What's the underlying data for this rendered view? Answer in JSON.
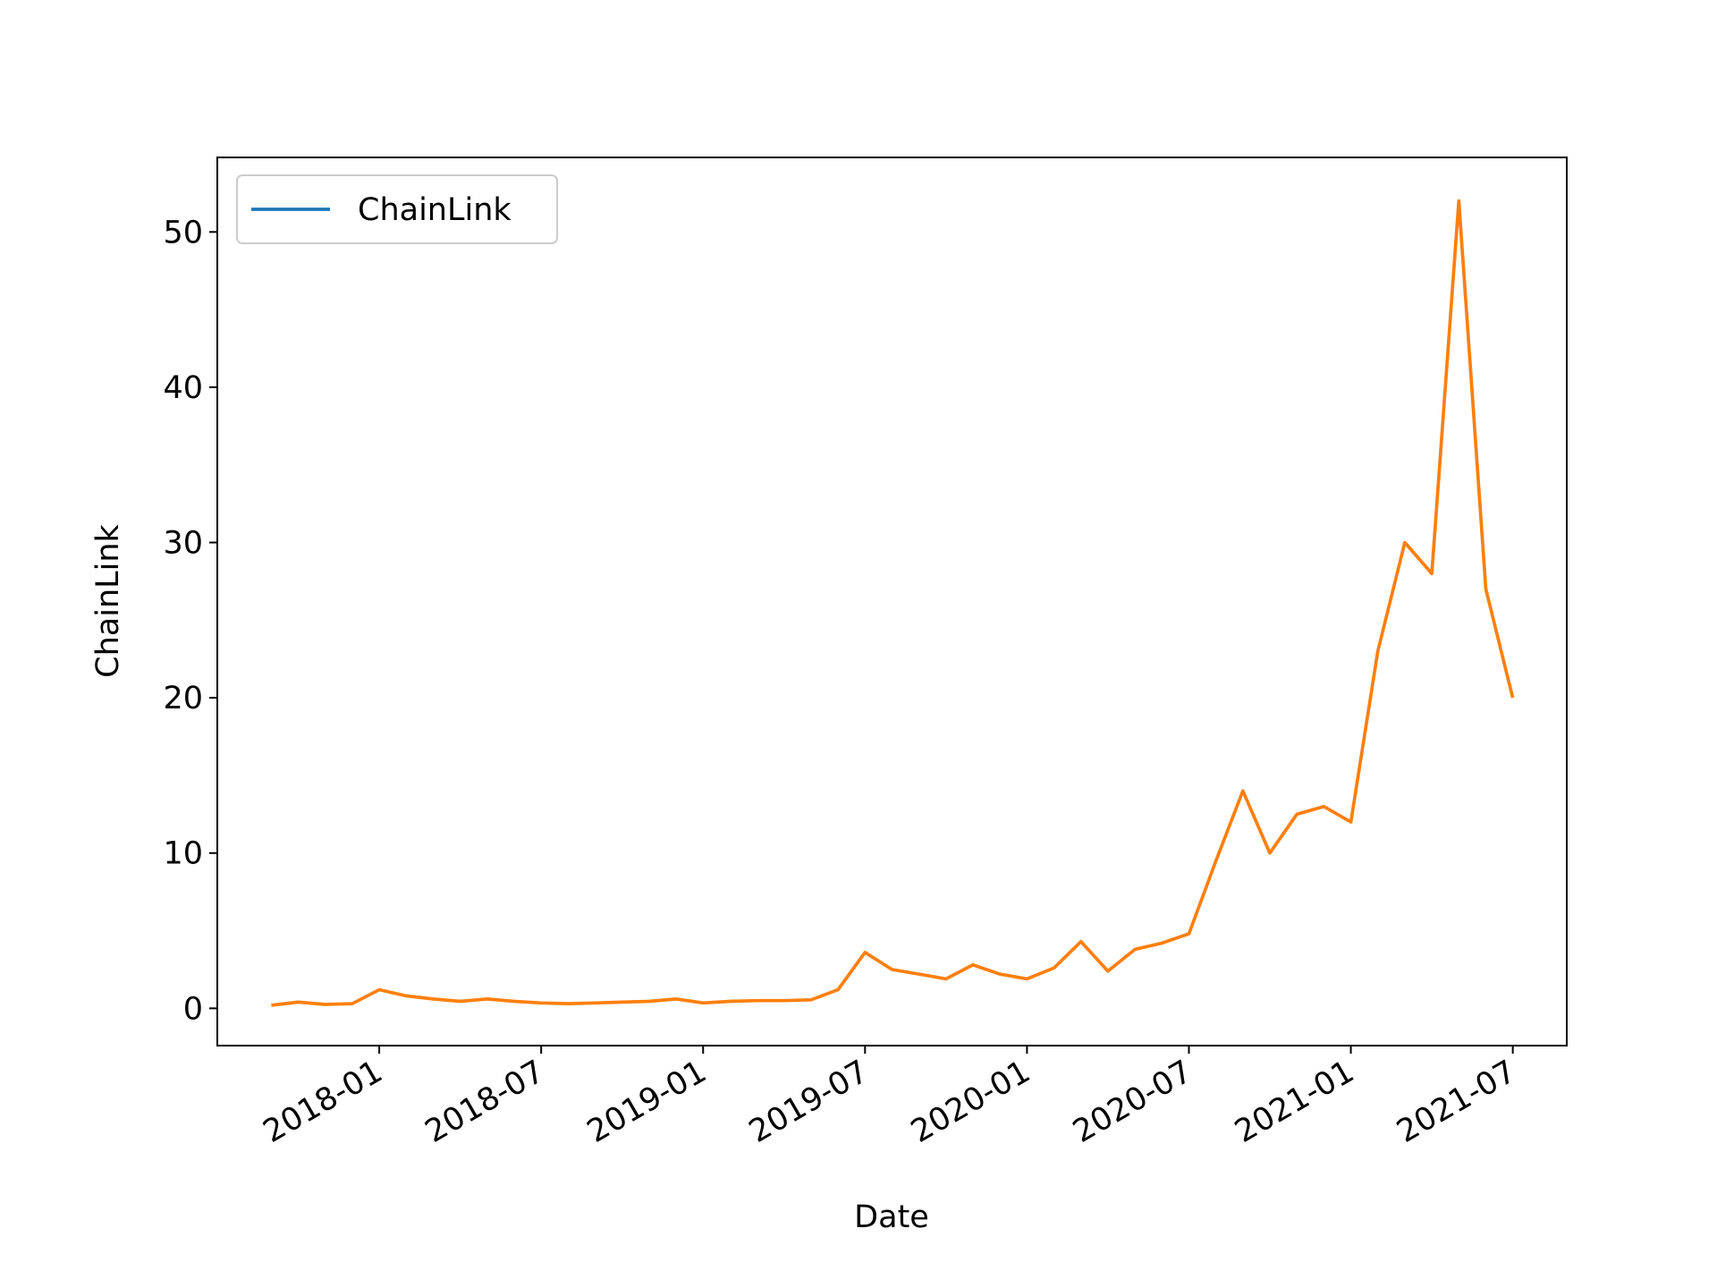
{
  "chart_data": {
    "type": "line",
    "xlabel": "Date",
    "ylabel": "ChainLink",
    "x": [
      "2017-09",
      "2017-10",
      "2017-11",
      "2017-12",
      "2018-01",
      "2018-02",
      "2018-03",
      "2018-04",
      "2018-05",
      "2018-06",
      "2018-07",
      "2018-08",
      "2018-09",
      "2018-10",
      "2018-11",
      "2018-12",
      "2019-01",
      "2019-02",
      "2019-03",
      "2019-04",
      "2019-05",
      "2019-06",
      "2019-07",
      "2019-08",
      "2019-09",
      "2019-10",
      "2019-11",
      "2019-12",
      "2020-01",
      "2020-02",
      "2020-03",
      "2020-04",
      "2020-05",
      "2020-06",
      "2020-07",
      "2020-08",
      "2020-09",
      "2020-10",
      "2020-11",
      "2020-12",
      "2021-01",
      "2021-02",
      "2021-03",
      "2021-04",
      "2021-05",
      "2021-06",
      "2021-07"
    ],
    "series": [
      {
        "name": "ChainLink",
        "color": "#ff7f0e",
        "legend_color": "#1f77b4",
        "values": [
          0.2,
          0.4,
          0.25,
          0.3,
          1.2,
          0.8,
          0.6,
          0.45,
          0.6,
          0.45,
          0.35,
          0.3,
          0.35,
          0.4,
          0.45,
          0.6,
          0.35,
          0.45,
          0.5,
          0.5,
          0.55,
          1.2,
          3.6,
          2.5,
          2.2,
          1.9,
          2.8,
          2.2,
          1.9,
          2.6,
          4.3,
          2.4,
          3.8,
          4.2,
          4.8,
          9.5,
          14,
          10,
          12.5,
          13,
          12,
          23,
          30,
          28,
          52,
          27,
          20
        ]
      }
    ],
    "xlim": [
      "2017-07",
      "2021-09"
    ],
    "xticks": [
      "2018-01",
      "2018-07",
      "2019-01",
      "2019-07",
      "2020-01",
      "2020-07",
      "2021-01",
      "2021-07"
    ],
    "ylim": [
      -2.4,
      54.8
    ],
    "yticks": [
      0,
      10,
      20,
      30,
      40,
      50
    ],
    "legend": "upper left"
  }
}
